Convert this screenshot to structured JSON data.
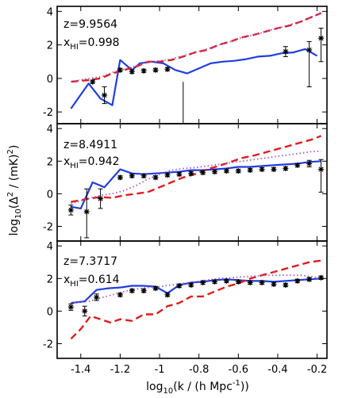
{
  "chart_data": {
    "type": "line",
    "xlabel": "log",
    "xlabel_sub": "10",
    "xlabel_rest": "(k / (h Mpc",
    "xlabel_sup": "-1",
    "xlabel_end": "))",
    "ylabel": "log",
    "ylabel_sub": "10",
    "ylabel_rest": "(Δ",
    "ylabel_sup": "2",
    "ylabel_rest2": " / (mK)",
    "ylabel_sup2": "2",
    "ylabel_end": ")",
    "x_ticks": [
      -1.4,
      -1.2,
      -1.0,
      -0.8,
      -0.6,
      -0.4,
      -0.2
    ],
    "x_tick_labels": [
      "-1.4",
      "-1.2",
      "-1",
      "-0.8",
      "-0.6",
      "-0.4",
      "-0.2"
    ],
    "xlim": [
      -1.52,
      -0.15
    ],
    "colors": {
      "solid": "#1f3fe0",
      "dashed": "#e01c1c",
      "dotted": "#a05ac8",
      "points": "#000000"
    },
    "panels": [
      {
        "z_label": "z=9.9564",
        "xhi_label": "x",
        "xhi_sub": "HI",
        "xhi_value": "=0.998",
        "ylim": [
          -2.7,
          4.3
        ],
        "y_ticks": [
          4,
          2,
          0,
          -2
        ],
        "y_tick_labels": [
          "4",
          "2",
          "0",
          "-2"
        ],
        "series": [
          {
            "style": "solid",
            "x": [
              -1.45,
              -1.36,
              -1.3,
              -1.24,
              -1.2,
              -1.14,
              -1.1,
              -1.04,
              -0.98,
              -0.92,
              -0.86,
              -0.8,
              -0.74,
              -0.68,
              -0.62,
              -0.56,
              -0.5,
              -0.44,
              -0.38,
              -0.32,
              -0.26,
              -0.2
            ],
            "y": [
              -1.8,
              -0.3,
              -1.2,
              -1.6,
              1.1,
              0.5,
              0.9,
              1.0,
              0.9,
              0.5,
              0.3,
              0.6,
              0.9,
              1.0,
              1.05,
              1.15,
              1.3,
              1.35,
              1.5,
              1.55,
              1.75,
              1.35
            ]
          },
          {
            "style": "dashed",
            "x": [
              -1.45,
              -1.36,
              -1.3,
              -1.24,
              -1.18,
              -1.12,
              -1.06,
              -1.0,
              -0.94,
              -0.88,
              -0.82,
              -0.76,
              -0.7,
              -0.64,
              -0.58,
              -0.52,
              -0.46,
              -0.4,
              -0.34,
              -0.28,
              -0.22,
              -0.18
            ],
            "y": [
              -0.2,
              -0.1,
              0.0,
              0.3,
              0.5,
              0.7,
              1.0,
              1.0,
              1.1,
              1.3,
              1.55,
              1.7,
              2.0,
              2.2,
              2.45,
              2.6,
              2.8,
              3.0,
              3.15,
              3.4,
              3.7,
              3.9
            ]
          },
          {
            "style": "dotted",
            "x": [
              -1.45,
              -1.36,
              -1.3,
              -1.24,
              -1.18,
              -1.12,
              -1.06,
              -1.0,
              -0.94,
              -0.88,
              -0.82,
              -0.76,
              -0.7,
              -0.64,
              -0.58,
              -0.52,
              -0.46,
              -0.4,
              -0.34,
              -0.28,
              -0.22,
              -0.18
            ],
            "y": [
              -0.2,
              0.0,
              0.1,
              0.35,
              0.55,
              0.75,
              1.0,
              1.05,
              1.15,
              1.35,
              1.55,
              1.75,
              2.0,
              2.2,
              2.45,
              2.6,
              2.8,
              3.0,
              3.2,
              3.4,
              3.7,
              3.9
            ]
          }
        ],
        "points": {
          "x": [
            -1.34,
            -1.28,
            -1.2,
            -1.14,
            -1.08,
            -1.02,
            -0.96,
            -0.36,
            -0.24,
            -0.18
          ],
          "y": [
            -0.2,
            -1.0,
            0.5,
            0.4,
            0.45,
            0.5,
            0.55,
            1.6,
            1.7,
            2.4
          ],
          "err_lo": [
            0.1,
            0.5,
            0.1,
            0.1,
            0.1,
            0.1,
            0.1,
            0.3,
            2.2,
            1.4
          ],
          "err_hi": [
            0.1,
            0.5,
            0.1,
            0.1,
            0.1,
            0.1,
            0.1,
            0.3,
            0.5,
            0.6
          ]
        },
        "vline": {
          "x": -0.88,
          "y_from": -2.7,
          "y_to": -0.2
        }
      },
      {
        "z_label": "z=8.4911",
        "xhi_label": "x",
        "xhi_sub": "HI",
        "xhi_value": "=0.942",
        "ylim": [
          -2.9,
          4.3
        ],
        "y_ticks": [
          4,
          2,
          0,
          -2
        ],
        "y_tick_labels": [
          "4",
          "2",
          "0",
          "-2"
        ],
        "series": [
          {
            "style": "solid",
            "x": [
              -1.45,
              -1.4,
              -1.34,
              -1.28,
              -1.2,
              -1.14,
              -1.08,
              -1.02,
              -0.96,
              -0.9,
              -0.84,
              -0.78,
              -0.72,
              -0.66,
              -0.6,
              -0.54,
              -0.48,
              -0.42,
              -0.36,
              -0.3,
              -0.24,
              -0.18
            ],
            "y": [
              -0.8,
              -0.9,
              0.7,
              0.4,
              1.5,
              1.25,
              1.2,
              1.25,
              1.3,
              1.35,
              1.45,
              1.45,
              1.5,
              1.55,
              1.65,
              1.65,
              1.7,
              1.75,
              1.8,
              1.85,
              1.95,
              2.0
            ]
          },
          {
            "style": "dashed",
            "x": [
              -1.45,
              -1.36,
              -1.3,
              -1.24,
              -1.18,
              -1.12,
              -1.06,
              -1.0,
              -0.94,
              -0.88,
              -0.82,
              -0.76,
              -0.7,
              -0.64,
              -0.58,
              -0.52,
              -0.46,
              -0.4,
              -0.34,
              -0.28,
              -0.22,
              -0.18
            ],
            "y": [
              -0.5,
              -0.3,
              -0.2,
              -0.25,
              -0.1,
              0.0,
              0.1,
              0.4,
              0.7,
              1.0,
              1.2,
              1.5,
              1.7,
              1.95,
              2.2,
              2.35,
              2.55,
              2.75,
              2.95,
              3.15,
              3.35,
              3.55
            ]
          },
          {
            "style": "dotted",
            "x": [
              -1.45,
              -1.36,
              -1.3,
              -1.24,
              -1.18,
              -1.12,
              -1.06,
              -1.0,
              -0.94,
              -0.88,
              -0.82,
              -0.76,
              -0.7,
              -0.64,
              -0.58,
              -0.52,
              -0.46,
              -0.4,
              -0.34,
              -0.28,
              -0.22,
              -0.18
            ],
            "y": [
              -0.6,
              -0.3,
              -0.1,
              0.0,
              0.2,
              0.5,
              0.9,
              1.2,
              1.45,
              1.55,
              1.6,
              1.7,
              1.8,
              1.9,
              2.0,
              2.1,
              2.2,
              2.3,
              2.4,
              2.5,
              2.6,
              2.6
            ]
          }
        ],
        "points": {
          "x": [
            -1.45,
            -1.37,
            -1.3,
            -1.2,
            -1.14,
            -1.08,
            -1.02,
            -0.96,
            -0.9,
            -0.84,
            -0.78,
            -0.72,
            -0.66,
            -0.6,
            -0.54,
            -0.48,
            -0.42,
            -0.36,
            -0.3,
            -0.24,
            -0.18
          ],
          "y": [
            -1.0,
            -1.1,
            -0.3,
            1.0,
            1.1,
            1.1,
            1.0,
            1.15,
            1.2,
            1.25,
            1.3,
            1.35,
            1.4,
            1.4,
            1.45,
            1.5,
            1.5,
            1.55,
            1.75,
            1.85,
            1.5
          ],
          "err_lo": [
            0.3,
            1.6,
            0.6,
            0.1,
            0.1,
            0.1,
            0.1,
            0.1,
            0.1,
            0.1,
            0.1,
            0.1,
            0.1,
            0.1,
            0.1,
            0.1,
            0.1,
            0.1,
            0.1,
            0.2,
            1.4
          ],
          "err_hi": [
            0.3,
            1.4,
            0.6,
            0.1,
            0.1,
            0.1,
            0.1,
            0.1,
            0.1,
            0.1,
            0.1,
            0.1,
            0.1,
            0.1,
            0.1,
            0.1,
            0.1,
            0.1,
            0.1,
            0.2,
            0.6
          ]
        },
        "vline": null
      },
      {
        "z_label": "z=7.3717",
        "xhi_label": "x",
        "xhi_sub": "HI",
        "xhi_value": "=0.614",
        "ylim": [
          -2.9,
          4.3
        ],
        "y_ticks": [
          4,
          2,
          0,
          -2
        ],
        "y_tick_labels": [
          "4",
          "2",
          "0",
          "-2"
        ],
        "series": [
          {
            "style": "solid",
            "x": [
              -1.45,
              -1.38,
              -1.32,
              -1.26,
              -1.2,
              -1.14,
              -1.08,
              -1.02,
              -0.96,
              -0.9,
              -0.84,
              -0.78,
              -0.72,
              -0.66,
              -0.6,
              -0.54,
              -0.48,
              -0.42,
              -0.36,
              -0.3,
              -0.24,
              -0.18
            ],
            "y": [
              0.5,
              0.6,
              1.3,
              1.4,
              1.45,
              1.55,
              1.55,
              1.5,
              1.1,
              1.6,
              1.75,
              1.8,
              1.9,
              1.95,
              1.9,
              1.85,
              1.85,
              1.8,
              1.85,
              1.9,
              1.95,
              2.0
            ]
          },
          {
            "style": "dashed",
            "x": [
              -1.45,
              -1.4,
              -1.35,
              -1.3,
              -1.25,
              -1.2,
              -1.14,
              -1.08,
              -1.02,
              -0.96,
              -0.9,
              -0.84,
              -0.78,
              -0.72,
              -0.66,
              -0.6,
              -0.54,
              -0.48,
              -0.42,
              -0.36,
              -0.3,
              -0.24,
              -0.18
            ],
            "y": [
              -1.7,
              -1.1,
              -0.3,
              -0.5,
              -0.7,
              -0.5,
              -0.6,
              -0.2,
              -0.2,
              0.3,
              0.5,
              0.9,
              0.9,
              1.2,
              1.5,
              1.7,
              2.0,
              2.2,
              2.4,
              2.6,
              2.8,
              3.0,
              3.1
            ]
          },
          {
            "style": "dotted",
            "x": [
              -1.45,
              -1.36,
              -1.3,
              -1.24,
              -1.18,
              -1.12,
              -1.06,
              -1.0,
              -0.94,
              -0.88,
              -0.82,
              -0.76,
              -0.7,
              -0.64,
              -0.58,
              -0.52,
              -0.46,
              -0.4,
              -0.34,
              -0.28,
              -0.22,
              -0.18
            ],
            "y": [
              0.5,
              0.6,
              0.8,
              1.0,
              1.2,
              1.35,
              1.45,
              1.5,
              1.6,
              1.7,
              1.8,
              1.9,
              2.0,
              2.05,
              2.1,
              2.15,
              2.2,
              2.2,
              2.2,
              2.2,
              2.1,
              2.0
            ]
          }
        ],
        "points": {
          "x": [
            -1.45,
            -1.38,
            -1.32,
            -1.2,
            -1.14,
            -1.08,
            -1.02,
            -0.96,
            -0.9,
            -0.84,
            -0.78,
            -0.72,
            -0.66,
            -0.6,
            -0.54,
            -0.48,
            -0.42,
            -0.36,
            -0.3,
            -0.24,
            -0.18
          ],
          "y": [
            0.25,
            0.0,
            0.85,
            1.0,
            1.25,
            1.25,
            1.4,
            1.0,
            1.55,
            1.6,
            1.75,
            1.8,
            1.85,
            1.8,
            1.75,
            1.75,
            1.65,
            1.6,
            1.85,
            1.95,
            2.05
          ],
          "err_lo": [
            0.2,
            0.3,
            0.2,
            0.1,
            0.1,
            0.1,
            0.1,
            0.1,
            0.1,
            0.1,
            0.1,
            0.1,
            0.1,
            0.1,
            0.1,
            0.1,
            0.1,
            0.1,
            0.1,
            0.1,
            0.1
          ],
          "err_hi": [
            0.2,
            0.3,
            0.2,
            0.1,
            0.1,
            0.1,
            0.1,
            0.1,
            0.1,
            0.1,
            0.1,
            0.1,
            0.1,
            0.1,
            0.1,
            0.1,
            0.1,
            0.1,
            0.1,
            0.1,
            0.1
          ]
        },
        "vline": null
      }
    ]
  }
}
